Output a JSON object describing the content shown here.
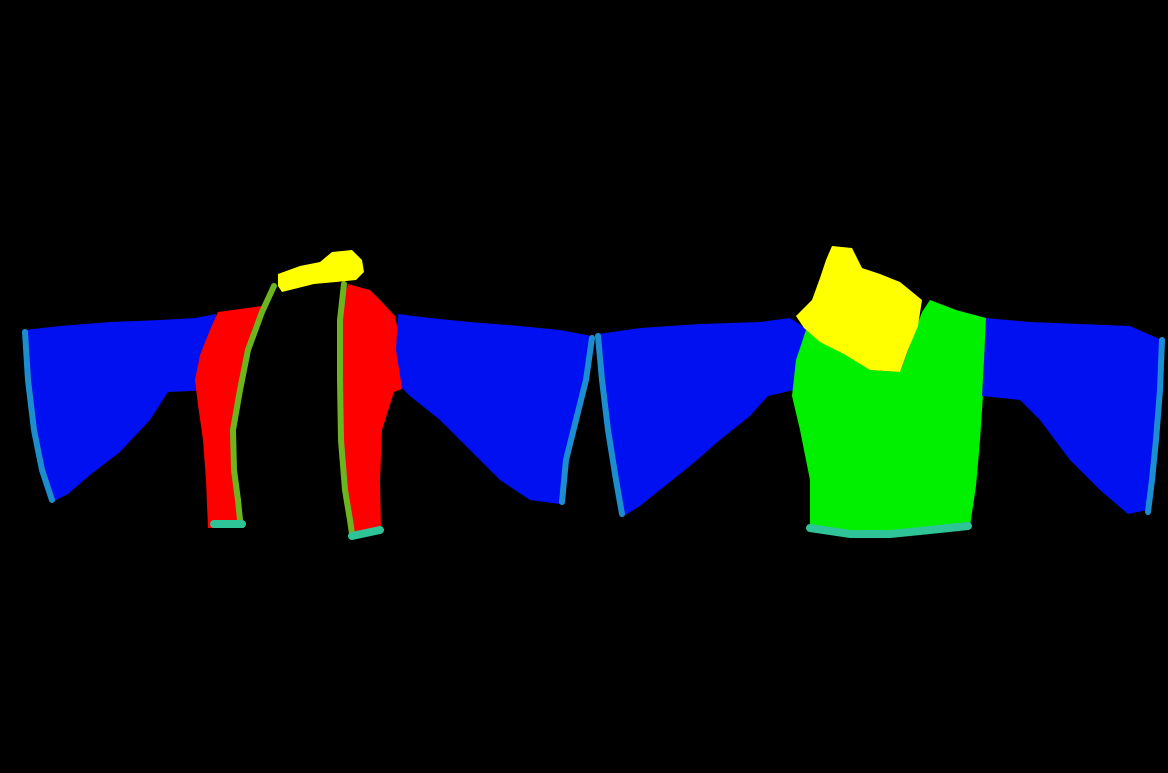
{
  "background_color": "#000000",
  "segment_colors": {
    "sleeve": "#0010F0",
    "front_panel": "#FF0000",
    "placket_trim": "#6DB51E",
    "collar": "#FFFF00",
    "hem": "#2EC497",
    "cuff": "#1C8ED0",
    "back_body": "#00F000"
  },
  "garments": [
    {
      "name": "front-view",
      "parts": [
        "sleeve",
        "front_panel",
        "placket_trim",
        "collar",
        "hem",
        "cuff"
      ]
    },
    {
      "name": "back-view",
      "parts": [
        "sleeve",
        "back_body",
        "collar",
        "hem",
        "cuff"
      ]
    }
  ]
}
